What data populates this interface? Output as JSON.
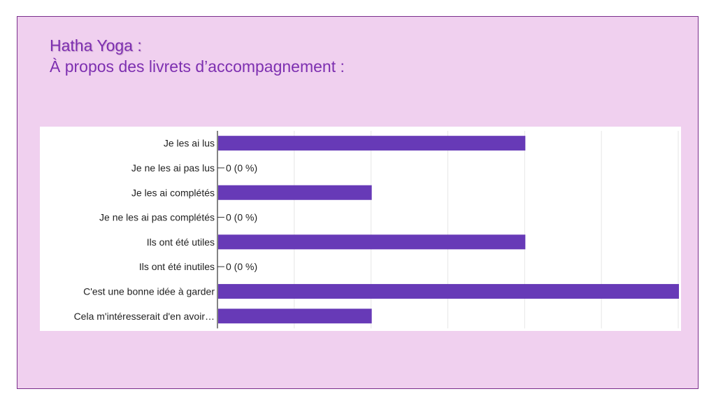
{
  "title": {
    "line1": "Hatha Yoga :",
    "line2": "À propos des livrets d’accompagnement :"
  },
  "colors": {
    "bar": "#673ab7",
    "slide_background": "#f0d0ef",
    "title": "#7d2fb0"
  },
  "chart_data": {
    "type": "bar",
    "orientation": "horizontal",
    "categories": [
      "Je les ai lus",
      "Je ne les ai pas lus",
      "Je les ai complétés",
      "Je ne les ai pas complétés",
      "Ils ont été utiles",
      "Ils ont été inutiles",
      "C'est une bonne idée à garder",
      "Cela m'intéresserait d'en avoir…"
    ],
    "values": [
      4,
      0,
      2,
      0,
      4,
      0,
      6,
      2
    ],
    "value_labels": [
      "",
      "0 (0 %)",
      "",
      "0 (0 %)",
      "",
      "0 (0 %)",
      "",
      ""
    ],
    "xlim": [
      0,
      6
    ],
    "grid": true
  }
}
